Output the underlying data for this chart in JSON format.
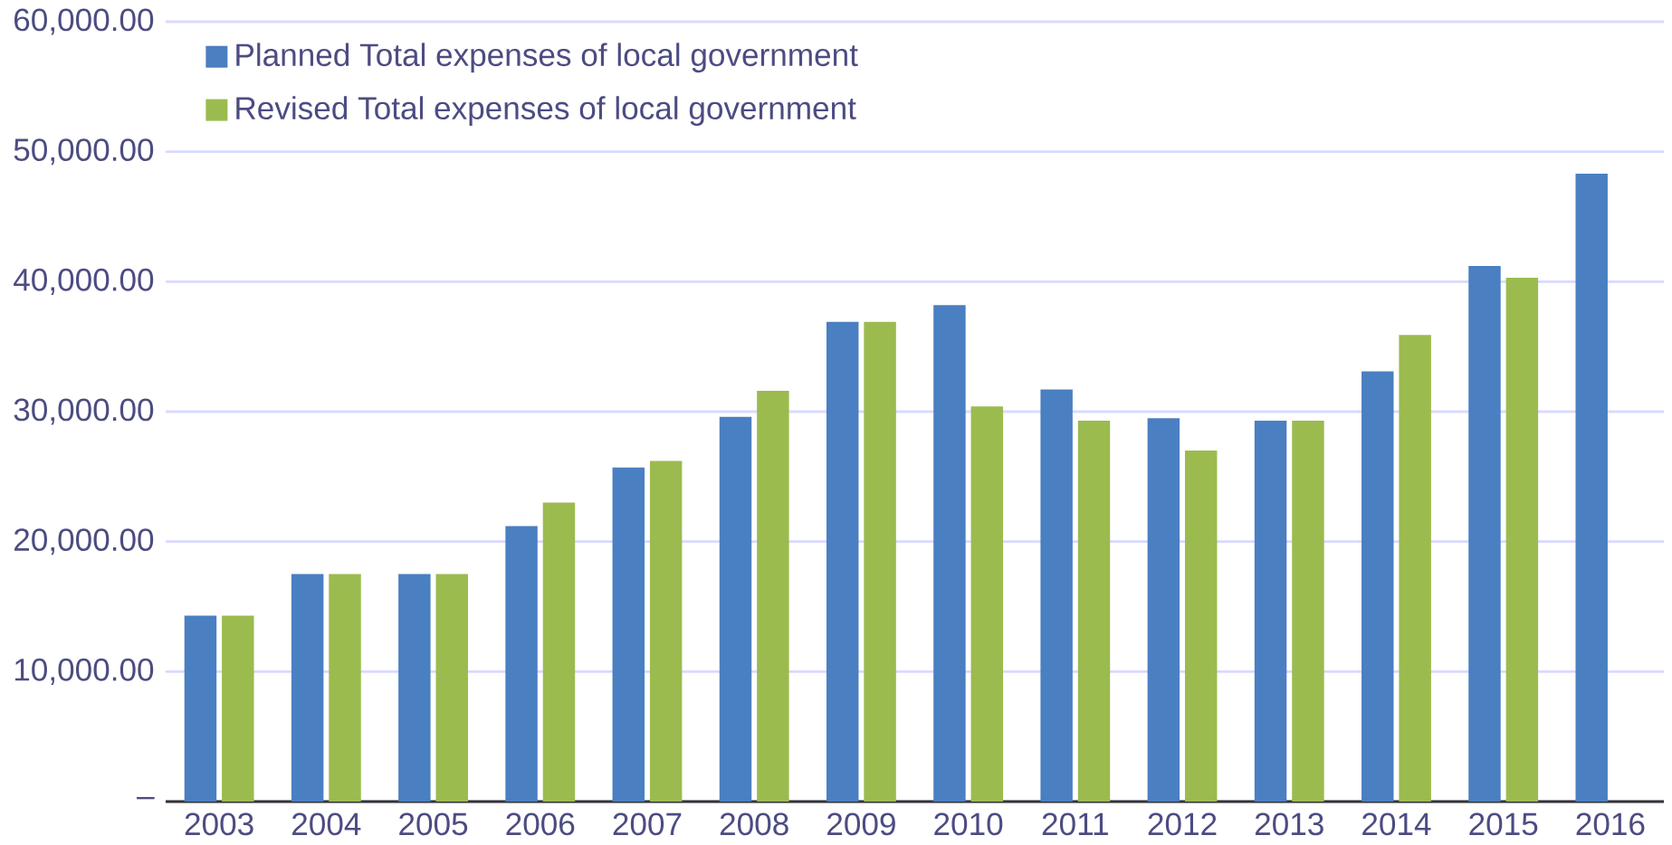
{
  "chart_data": {
    "type": "bar",
    "categories": [
      "2003",
      "2004",
      "2005",
      "2006",
      "2007",
      "2008",
      "2009",
      "2010",
      "2011",
      "2012",
      "2013",
      "2014",
      "2015",
      "2016"
    ],
    "series": [
      {
        "name": "Planned Total expenses of local government",
        "color": "#4a7fc1",
        "values": [
          14300,
          17500,
          17500,
          21200,
          25700,
          29600,
          36900,
          38200,
          31700,
          29500,
          29300,
          33100,
          41200,
          48300
        ]
      },
      {
        "name": "Revised Total expenses of local government",
        "color": "#9bbb4f",
        "values": [
          14300,
          17500,
          17500,
          23000,
          26200,
          31600,
          36900,
          30400,
          29300,
          27000,
          29300,
          35900,
          40300,
          null
        ]
      }
    ],
    "ylim": [
      0,
      60000
    ],
    "yticks": [
      {
        "value": 0,
        "label": "–"
      },
      {
        "value": 10000,
        "label": "10,000.00"
      },
      {
        "value": 20000,
        "label": "20,000.00"
      },
      {
        "value": 30000,
        "label": "30,000.00"
      },
      {
        "value": 40000,
        "label": "40,000.00"
      },
      {
        "value": 50000,
        "label": "50,000.00"
      },
      {
        "value": 60000,
        "label": "60,000.00"
      }
    ],
    "grid": "y",
    "legend": "top left"
  }
}
